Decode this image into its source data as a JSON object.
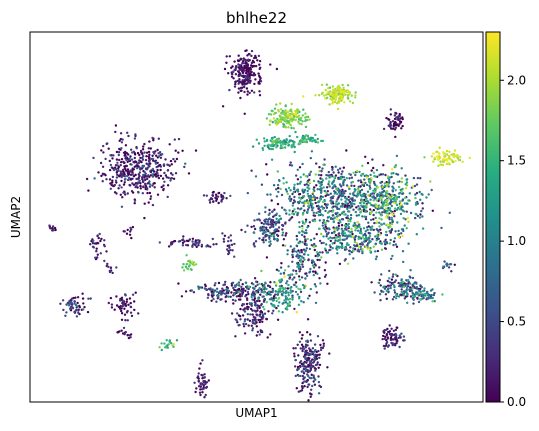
{
  "chart_data": {
    "type": "scatter",
    "title": "bhlhe22",
    "xlabel": "UMAP1",
    "ylabel": "UMAP2",
    "x_ticks_shown": false,
    "y_ticks_shown": false,
    "grid": false,
    "colormap": "viridis",
    "colorbar": {
      "min": 0.0,
      "max": 2.3,
      "ticks": [
        0.0,
        0.5,
        1.0,
        1.5,
        2.0
      ],
      "tick_labels": [
        "0.0",
        "0.5",
        "1.0",
        "1.5",
        "2.0"
      ]
    },
    "xlim": [
      0,
      100
    ],
    "ylim": [
      0,
      100
    ],
    "clusters": [
      {
        "x": 47.5,
        "y": 89,
        "sx": 1.8,
        "sy": 2.6,
        "n": 220,
        "v": 0.05,
        "vs": 0.15
      },
      {
        "x": 68,
        "y": 83,
        "sx": 1.9,
        "sy": 1.2,
        "n": 150,
        "v": 2.0,
        "vs": 0.15
      },
      {
        "x": 57,
        "y": 77,
        "sx": 1.9,
        "sy": 1.3,
        "n": 150,
        "v": 1.8,
        "vs": 0.2
      },
      {
        "x": 55,
        "y": 70,
        "sx": 2.2,
        "sy": 0.9,
        "n": 90,
        "v": 1.35,
        "vs": 0.2
      },
      {
        "x": 61,
        "y": 71,
        "sx": 1.2,
        "sy": 0.8,
        "n": 45,
        "v": 1.4,
        "vs": 0.2
      },
      {
        "x": 80.5,
        "y": 75.5,
        "sx": 0.8,
        "sy": 1.5,
        "n": 55,
        "v": 0.05,
        "vs": 0.2
      },
      {
        "x": 92,
        "y": 66,
        "sx": 2.0,
        "sy": 1.0,
        "n": 70,
        "v": 2.1,
        "vs": 0.15
      },
      {
        "x": 24,
        "y": 63,
        "sx": 3.8,
        "sy": 4.2,
        "n": 420,
        "v": 0.15,
        "vs": 0.3
      },
      {
        "x": 41,
        "y": 55.5,
        "sx": 1.2,
        "sy": 0.8,
        "n": 35,
        "v": 0.1,
        "vs": 0.2
      },
      {
        "x": 66,
        "y": 55,
        "sx": 6.5,
        "sy": 4.5,
        "n": 600,
        "v": 0.7,
        "vs": 0.6
      },
      {
        "x": 79,
        "y": 55,
        "sx": 4.0,
        "sy": 4.0,
        "n": 350,
        "v": 1.0,
        "vs": 0.6
      },
      {
        "x": 72,
        "y": 44,
        "sx": 5.0,
        "sy": 2.5,
        "n": 300,
        "v": 0.9,
        "vs": 0.6
      },
      {
        "x": 53,
        "y": 47,
        "sx": 2.0,
        "sy": 2.5,
        "n": 140,
        "v": 0.4,
        "vs": 0.4
      },
      {
        "x": 60,
        "y": 38,
        "sx": 2.5,
        "sy": 5.0,
        "n": 160,
        "v": 0.5,
        "vs": 0.5
      },
      {
        "x": 46,
        "y": 30,
        "sx": 5.0,
        "sy": 1.3,
        "n": 200,
        "v": 0.4,
        "vs": 0.5
      },
      {
        "x": 55.5,
        "y": 29,
        "sx": 2.0,
        "sy": 2.5,
        "n": 90,
        "v": 1.4,
        "vs": 0.3
      },
      {
        "x": 82,
        "y": 31,
        "sx": 2.8,
        "sy": 1.6,
        "n": 120,
        "v": 0.6,
        "vs": 0.5
      },
      {
        "x": 86,
        "y": 29,
        "sx": 1.8,
        "sy": 1.0,
        "n": 70,
        "v": 0.8,
        "vs": 0.4
      },
      {
        "x": 80,
        "y": 17.5,
        "sx": 1.2,
        "sy": 1.5,
        "n": 70,
        "v": 0.1,
        "vs": 0.2
      },
      {
        "x": 61.5,
        "y": 10.5,
        "sx": 1.5,
        "sy": 3.5,
        "n": 200,
        "v": 0.2,
        "vs": 0.3
      },
      {
        "x": 49.5,
        "y": 24,
        "sx": 2.2,
        "sy": 3.0,
        "n": 130,
        "v": 0.2,
        "vs": 0.3
      },
      {
        "x": 21,
        "y": 26,
        "sx": 1.3,
        "sy": 1.6,
        "n": 55,
        "v": 0.1,
        "vs": 0.2
      },
      {
        "x": 10,
        "y": 26,
        "sx": 1.6,
        "sy": 1.2,
        "n": 55,
        "v": 0.3,
        "vs": 0.3
      },
      {
        "x": 35,
        "y": 43,
        "sx": 3.0,
        "sy": 0.7,
        "n": 50,
        "v": 0.15,
        "vs": 0.3
      },
      {
        "x": 15,
        "y": 42,
        "sx": 1.2,
        "sy": 1.6,
        "n": 30,
        "v": 0.1,
        "vs": 0.2
      },
      {
        "x": 35,
        "y": 37,
        "sx": 1.0,
        "sy": 1.2,
        "n": 25,
        "v": 1.8,
        "vs": 0.2
      },
      {
        "x": 38,
        "y": 5,
        "sx": 0.7,
        "sy": 2.0,
        "n": 45,
        "v": 0.1,
        "vs": 0.2
      },
      {
        "x": 21,
        "y": 18.5,
        "sx": 0.8,
        "sy": 0.6,
        "n": 15,
        "v": 0.1,
        "vs": 0.2
      },
      {
        "x": 30.5,
        "y": 15.5,
        "sx": 1.0,
        "sy": 0.7,
        "n": 20,
        "v": 1.6,
        "vs": 0.2
      },
      {
        "x": 44,
        "y": 42,
        "sx": 0.6,
        "sy": 1.5,
        "n": 20,
        "v": 0.2,
        "vs": 0.2
      },
      {
        "x": 92,
        "y": 37,
        "sx": 1.0,
        "sy": 0.5,
        "n": 15,
        "v": 0.5,
        "vs": 0.3
      },
      {
        "x": 5,
        "y": 47,
        "sx": 0.6,
        "sy": 0.4,
        "n": 10,
        "v": 0.1,
        "vs": 0.2
      },
      {
        "x": 22,
        "y": 46,
        "sx": 0.5,
        "sy": 0.8,
        "n": 10,
        "v": 0.1,
        "vs": 0.2
      },
      {
        "x": 17.5,
        "y": 36,
        "sx": 0.6,
        "sy": 0.5,
        "n": 10,
        "v": 0.1,
        "vs": 0.2
      },
      {
        "x": 42,
        "y": 29,
        "sx": 1.0,
        "sy": 1.5,
        "n": 20,
        "v": 0.5,
        "vs": 0.3
      }
    ]
  }
}
